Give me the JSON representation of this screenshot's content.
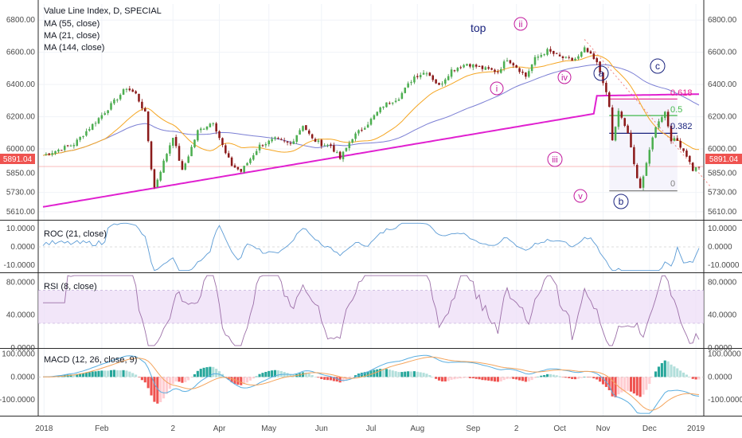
{
  "chart_data": [
    {
      "type": "candlestick",
      "title": "Value Line Index, D, SPECIAL",
      "indicators": [
        "MA (55, close)",
        "MA (21, close)",
        "MA (144, close)"
      ],
      "ylim": [
        5560,
        6900
      ],
      "yticks": [
        "6800.00",
        "6600.00",
        "6400.00",
        "6200.00",
        "6000.00",
        "5850.00",
        "5730.00",
        "5610.00"
      ],
      "last_price": "5891.04",
      "x_labels": [
        "2018",
        "Feb",
        "2",
        "Apr",
        "May",
        "Jun",
        "Jul",
        "Aug",
        "Sep",
        "2",
        "Oct",
        "Nov",
        "Dec",
        "2019"
      ],
      "price_path": [
        [
          0,
          5960
        ],
        [
          10,
          6030
        ],
        [
          20,
          6230
        ],
        [
          27,
          6380
        ],
        [
          30,
          6340
        ],
        [
          33,
          6220
        ],
        [
          35,
          5880
        ],
        [
          36,
          5760
        ],
        [
          39,
          5920
        ],
        [
          42,
          6080
        ],
        [
          45,
          5860
        ],
        [
          50,
          6110
        ],
        [
          55,
          6170
        ],
        [
          59,
          5970
        ],
        [
          61,
          5900
        ],
        [
          64,
          5860
        ],
        [
          70,
          6020
        ],
        [
          75,
          6060
        ],
        [
          80,
          6030
        ],
        [
          84,
          6150
        ],
        [
          87,
          6060
        ],
        [
          90,
          6030
        ],
        [
          93,
          6020
        ],
        [
          96,
          5940
        ],
        [
          100,
          6070
        ],
        [
          105,
          6160
        ],
        [
          110,
          6270
        ],
        [
          115,
          6320
        ],
        [
          120,
          6450
        ],
        [
          124,
          6480
        ],
        [
          128,
          6390
        ],
        [
          132,
          6490
        ],
        [
          137,
          6530
        ],
        [
          142,
          6500
        ],
        [
          147,
          6480
        ],
        [
          150,
          6560
        ],
        [
          153,
          6510
        ],
        [
          156,
          6450
        ],
        [
          159,
          6560
        ],
        [
          163,
          6610
        ],
        [
          167,
          6570
        ],
        [
          171,
          6550
        ],
        [
          173,
          6570
        ],
        [
          175,
          6620
        ],
        [
          177,
          6580
        ],
        [
          179,
          6530
        ],
        [
          181,
          6420
        ],
        [
          183,
          6260
        ],
        [
          184,
          6050
        ],
        [
          186,
          6230
        ],
        [
          189,
          6100
        ],
        [
          191,
          5900
        ],
        [
          193,
          5760
        ],
        [
          195,
          5900
        ],
        [
          197,
          6080
        ],
        [
          199,
          6180
        ],
        [
          201,
          6230
        ],
        [
          203,
          6060
        ],
        [
          205,
          6050
        ],
        [
          208,
          5960
        ],
        [
          210,
          5870
        ],
        [
          212,
          5891
        ]
      ],
      "annotations": {
        "wave_top": "top",
        "wave_i": "i",
        "wave_ii": "ii",
        "wave_iii": "iii",
        "wave_iv": "iv",
        "wave_v": "v",
        "wave_a": "a",
        "wave_b": "b",
        "wave_c": "c"
      },
      "fib_levels": [
        {
          "label": "0.618",
          "value": 6310,
          "color": "#e91e8c"
        },
        {
          "label": "0.5",
          "value": 6207,
          "color": "#43b94c"
        },
        {
          "label": "0.382",
          "value": 6097,
          "color": "#1a237e"
        },
        {
          "label": "0",
          "value": 5740,
          "color": "#7f7f7f"
        }
      ]
    },
    {
      "type": "line",
      "title": "ROC (21, close)",
      "ylim": [
        -14,
        14
      ],
      "yticks": [
        "10.0000",
        "0.0000",
        "-10.0000"
      ]
    },
    {
      "type": "line",
      "title": "RSI (8, close)",
      "ylim": [
        0,
        90
      ],
      "yticks": [
        "80.0000",
        "40.0000",
        "0.0000"
      ]
    },
    {
      "type": "bar",
      "title": "MACD (12, 26, close, 9)",
      "ylim": [
        -170,
        120
      ],
      "yticks": [
        "100.0000",
        "0.0000",
        "-100.0000"
      ]
    }
  ],
  "colors": {
    "up": "#26a69a",
    "down": "#ef5350",
    "ma21": "#f5a623",
    "ma55": "#7b7fd4",
    "ma144": "#e020d0",
    "roc": "#5b9bd5",
    "rsi": "#9c6fa8",
    "rsi_band": "#ecdcf7",
    "macd": "#5aaee0",
    "signal": "#f4a45c",
    "wave_blue": "#1a237e",
    "wave_pink": "#c2189c",
    "last_price_bg": "#ef5350"
  }
}
